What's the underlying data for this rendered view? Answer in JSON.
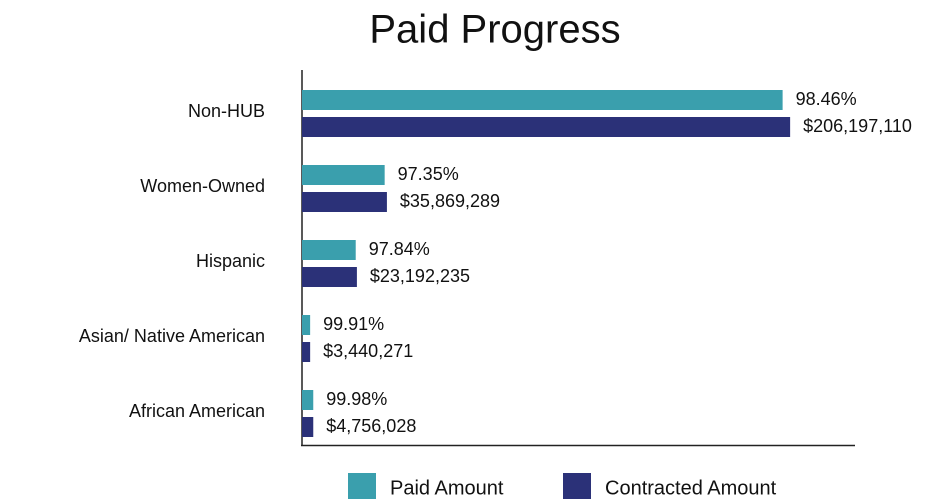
{
  "chart_data": {
    "type": "bar",
    "orientation": "horizontal",
    "title": "Paid Progress",
    "categories": [
      "Non-HUB",
      "Women-Owned",
      "Hispanic",
      "Asian/ Native American",
      "African American"
    ],
    "series": [
      {
        "name": "Paid Amount",
        "color": "#3a9fad",
        "values": [
          203021675,
          34918753,
          22691283,
          3437175,
          4755077
        ],
        "percent_labels": [
          "98.46%",
          "97.35%",
          "97.84%",
          "99.91%",
          "99.98%"
        ]
      },
      {
        "name": "Contracted Amount",
        "color": "#2b3178",
        "values": [
          206197110,
          35869289,
          23192235,
          3440271,
          4756028
        ],
        "value_labels": [
          "$206,197,110",
          "$35,869,289",
          "$23,192,235",
          "$3,440,271",
          "$4,756,028"
        ]
      }
    ],
    "xlim": [
      0,
      233600000
    ],
    "legend": "bottom"
  }
}
